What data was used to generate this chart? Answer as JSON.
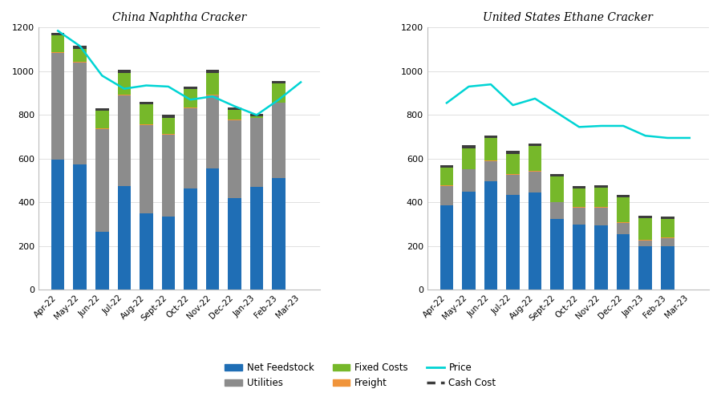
{
  "categories": [
    "Apr-22",
    "May-22",
    "Jun-22",
    "Jul-22",
    "Aug-22",
    "Sept-22",
    "Oct-22",
    "Nov-22",
    "Dec-22",
    "Jan-23",
    "Feb-23",
    "Mar-23"
  ],
  "china_feedstock": [
    595,
    575,
    265,
    475,
    350,
    335,
    465,
    555,
    420,
    470,
    510,
    0
  ],
  "china_utilities": [
    490,
    465,
    470,
    415,
    405,
    375,
    365,
    335,
    355,
    315,
    345,
    0
  ],
  "china_freight": [
    3,
    3,
    3,
    3,
    3,
    3,
    3,
    3,
    3,
    3,
    3,
    0
  ],
  "china_fixed": [
    75,
    60,
    80,
    100,
    90,
    75,
    85,
    100,
    45,
    5,
    85,
    0
  ],
  "china_cashcost": [
    12,
    12,
    12,
    12,
    12,
    12,
    12,
    12,
    12,
    12,
    12,
    0
  ],
  "china_price": [
    1185,
    1115,
    980,
    920,
    935,
    930,
    870,
    885,
    840,
    800,
    870,
    950
  ],
  "us_feedstock": [
    385,
    450,
    495,
    435,
    445,
    325,
    300,
    295,
    255,
    200,
    200,
    0
  ],
  "us_utilities": [
    90,
    100,
    95,
    90,
    95,
    75,
    75,
    80,
    50,
    25,
    35,
    0
  ],
  "us_freight": [
    3,
    3,
    3,
    3,
    3,
    3,
    3,
    3,
    3,
    3,
    3,
    0
  ],
  "us_fixed": [
    80,
    95,
    100,
    95,
    115,
    115,
    85,
    90,
    115,
    100,
    85,
    0
  ],
  "us_cashcost": [
    12,
    12,
    12,
    12,
    12,
    12,
    12,
    12,
    12,
    12,
    12,
    0
  ],
  "us_price": [
    855,
    930,
    940,
    845,
    875,
    810,
    745,
    750,
    750,
    705,
    695,
    695
  ],
  "color_feedstock": "#1f6eb5",
  "color_utilities": "#8c8c8c",
  "color_freight": "#f0943a",
  "color_fixed": "#76b82a",
  "color_cashcost": "#3d3d3d",
  "color_price": "#00d4d4",
  "title_china": "China Naphtha Cracker",
  "title_us": "United States Ethane Cracker",
  "ylim": [
    0,
    1200
  ],
  "yticks": [
    0,
    200,
    400,
    600,
    800,
    1000,
    1200
  ],
  "bg_color": "#ffffff"
}
